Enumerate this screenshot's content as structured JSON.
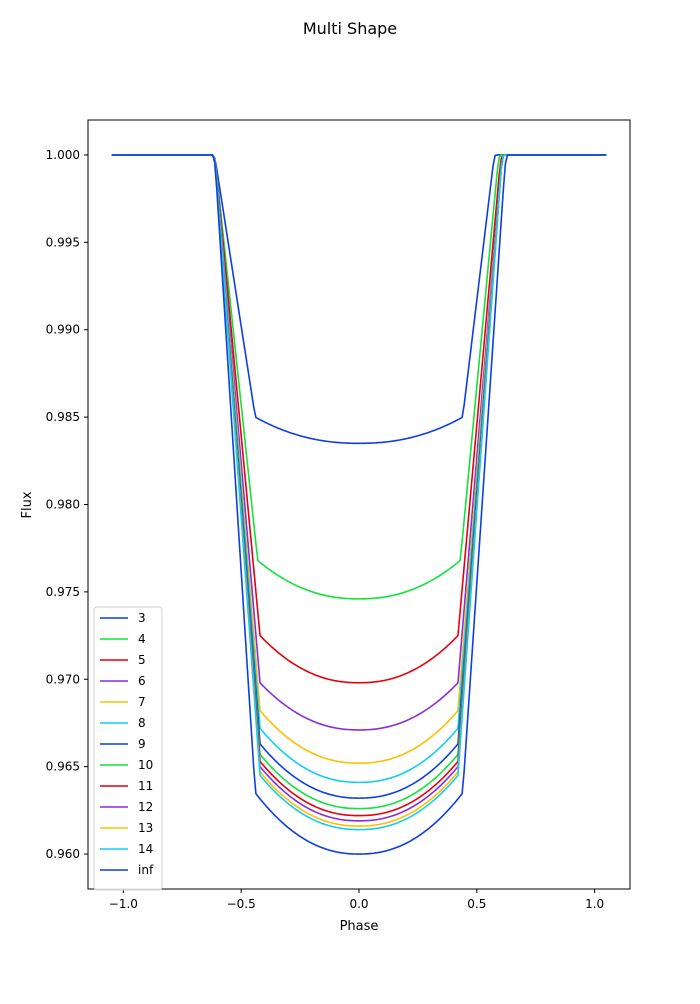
{
  "chart_data": {
    "type": "line",
    "title": "Multi Shape",
    "xlabel": "Phase",
    "ylabel": "Flux",
    "xlim": [
      -1.15,
      1.15
    ],
    "ylim": [
      0.958,
      1.002
    ],
    "xticks": [
      -1.0,
      -0.5,
      0.0,
      0.5,
      1.0
    ],
    "xtick_labels": [
      "−1.0",
      "−0.5",
      "0.0",
      "0.5",
      "1.0"
    ],
    "yticks": [
      0.96,
      0.965,
      0.97,
      0.975,
      0.98,
      0.985,
      0.99,
      0.995,
      1.0
    ],
    "ytick_labels": [
      "0.960",
      "0.965",
      "0.970",
      "0.975",
      "0.980",
      "0.985",
      "0.990",
      "0.995",
      "1.000"
    ],
    "grid": false,
    "legend_position": "lower-left",
    "x_range": [
      -1.05,
      1.05
    ],
    "ingress_phase": -0.62,
    "egress_phase": 0.62,
    "series": [
      {
        "name": "3",
        "color": "#0d3ee5",
        "edge": 0.985,
        "center": 0.9835,
        "contact": 0.44,
        "egress_end": 0.58
      },
      {
        "name": "4",
        "color": "#12e33a",
        "edge": 0.9768,
        "center": 0.9746,
        "contact": 0.43,
        "egress_end": 0.6
      },
      {
        "name": "5",
        "color": "#e5000d",
        "edge": 0.9725,
        "center": 0.9698,
        "contact": 0.42,
        "egress_end": 0.61
      },
      {
        "name": "6",
        "color": "#8b2be0",
        "edge": 0.9698,
        "center": 0.9671,
        "contact": 0.42,
        "egress_end": 0.615
      },
      {
        "name": "7",
        "color": "#fdbf00",
        "edge": 0.9682,
        "center": 0.9652,
        "contact": 0.42,
        "egress_end": 0.615
      },
      {
        "name": "8",
        "color": "#10cff0",
        "edge": 0.9672,
        "center": 0.9641,
        "contact": 0.42,
        "egress_end": 0.615
      },
      {
        "name": "9",
        "color": "#0d3ee5",
        "edge": 0.9663,
        "center": 0.9632,
        "contact": 0.42,
        "egress_end": 0.615
      },
      {
        "name": "10",
        "color": "#12e33a",
        "edge": 0.9657,
        "center": 0.9626,
        "contact": 0.42,
        "egress_end": 0.615
      },
      {
        "name": "11",
        "color": "#e5000d",
        "edge": 0.9653,
        "center": 0.9622,
        "contact": 0.42,
        "egress_end": 0.615
      },
      {
        "name": "12",
        "color": "#8b2be0",
        "edge": 0.965,
        "center": 0.9619,
        "contact": 0.42,
        "egress_end": 0.615
      },
      {
        "name": "13",
        "color": "#fdbf00",
        "edge": 0.9647,
        "center": 0.9616,
        "contact": 0.42,
        "egress_end": 0.615
      },
      {
        "name": "14",
        "color": "#10cff0",
        "edge": 0.9645,
        "center": 0.9614,
        "contact": 0.42,
        "egress_end": 0.615
      },
      {
        "name": "inf",
        "color": "#0d3ee5",
        "edge": 0.9635,
        "center": 0.96,
        "contact": 0.44,
        "egress_end": 0.63
      }
    ]
  }
}
